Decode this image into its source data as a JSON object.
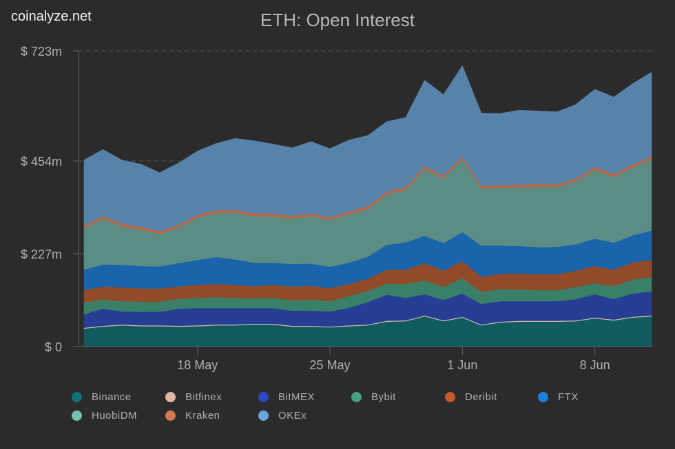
{
  "brand": "coinalyze.net",
  "chart_data": {
    "type": "area",
    "stacked": true,
    "title": "ETH: Open Interest",
    "xlabel": "",
    "ylabel": "",
    "x": [
      "2021-05-12",
      "2021-05-13",
      "2021-05-14",
      "2021-05-15",
      "2021-05-16",
      "2021-05-17",
      "2021-05-18",
      "2021-05-19",
      "2021-05-20",
      "2021-05-21",
      "2021-05-22",
      "2021-05-23",
      "2021-05-24",
      "2021-05-25",
      "2021-05-26",
      "2021-05-27",
      "2021-05-28",
      "2021-05-29",
      "2021-05-30",
      "2021-05-31",
      "2021-06-01",
      "2021-06-02",
      "2021-06-03",
      "2021-06-04",
      "2021-06-05",
      "2021-06-06",
      "2021-06-07",
      "2021-06-08",
      "2021-06-09",
      "2021-06-10",
      "2021-06-11"
    ],
    "x_ticks": [
      {
        "date": "2021-05-18",
        "label": "18 May"
      },
      {
        "date": "2021-05-25",
        "label": "25 May"
      },
      {
        "date": "2021-06-01",
        "label": "1 Jun"
      },
      {
        "date": "2021-06-08",
        "label": "8 Jun"
      }
    ],
    "ylim": [
      0,
      723
    ],
    "y_ticks": [
      {
        "value": 0,
        "label": "$ 0"
      },
      {
        "value": 227,
        "label": "$ 227m"
      },
      {
        "value": 454,
        "label": "$ 454m"
      },
      {
        "value": 723,
        "label": "$ 723m"
      }
    ],
    "unit": "USD millions",
    "grid": "horizontal dashed",
    "legend_position": "bottom",
    "series": [
      {
        "name": "Binance",
        "color": "#0e5c5e",
        "legend_color": "#0f7479",
        "values": [
          44,
          49,
          52,
          50,
          50,
          49,
          50,
          52,
          52,
          54,
          54,
          49,
          49,
          47,
          50,
          52,
          61,
          62,
          74,
          62,
          71,
          52,
          59,
          61,
          61,
          61,
          62,
          69,
          64,
          71,
          74
        ]
      },
      {
        "name": "Bitfinex",
        "color": "#e0bcae",
        "legend_color": "#e2b6a4",
        "values": [
          2,
          2,
          2,
          2,
          2,
          2,
          2,
          2,
          2,
          2,
          2,
          2,
          2,
          2,
          2,
          2,
          2,
          2,
          2,
          2,
          2,
          2,
          2,
          2,
          2,
          2,
          2,
          2,
          2,
          2,
          2
        ]
      },
      {
        "name": "BitMEX",
        "color": "#263f94",
        "legend_color": "#2a48c4",
        "values": [
          33,
          42,
          32,
          33,
          33,
          42,
          42,
          40,
          40,
          38,
          38,
          37,
          37,
          37,
          43,
          55,
          64,
          55,
          52,
          50,
          57,
          50,
          50,
          48,
          48,
          48,
          52,
          57,
          50,
          57,
          59
        ]
      },
      {
        "name": "Bybit",
        "color": "#3a8068",
        "legend_color": "#44a182",
        "values": [
          29,
          22,
          25,
          25,
          25,
          24,
          25,
          27,
          25,
          24,
          25,
          25,
          27,
          25,
          29,
          27,
          27,
          34,
          34,
          32,
          37,
          30,
          30,
          29,
          27,
          27,
          30,
          27,
          32,
          34,
          35
        ]
      },
      {
        "name": "Deribit",
        "color": "#934a28",
        "legend_color": "#c55a2c",
        "values": [
          30,
          32,
          34,
          32,
          32,
          30,
          32,
          32,
          32,
          30,
          32,
          34,
          34,
          32,
          29,
          30,
          34,
          35,
          42,
          40,
          42,
          37,
          37,
          39,
          39,
          39,
          40,
          42,
          40,
          42,
          42
        ]
      },
      {
        "name": "FTX",
        "color": "#1a64ab",
        "legend_color": "#1f7fe0",
        "values": [
          50,
          54,
          55,
          55,
          54,
          57,
          61,
          66,
          62,
          57,
          54,
          55,
          54,
          52,
          52,
          54,
          61,
          67,
          67,
          67,
          71,
          76,
          69,
          67,
          66,
          67,
          64,
          67,
          66,
          66,
          72
        ]
      },
      {
        "name": "HuobiDM",
        "color": "#5b8d84",
        "legend_color": "#74c0b2",
        "values": [
          101,
          111,
          94,
          89,
          79,
          87,
          103,
          108,
          114,
          114,
          113,
          111,
          116,
          114,
          118,
          116,
          123,
          128,
          163,
          158,
          178,
          140,
          141,
          143,
          148,
          146,
          153,
          168,
          161,
          166,
          173
        ]
      },
      {
        "name": "Kraken",
        "color": "#b5694c",
        "legend_color": "#d4784f",
        "values": [
          7,
          7,
          7,
          7,
          7,
          7,
          7,
          7,
          7,
          7,
          7,
          7,
          7,
          7,
          7,
          7,
          7,
          7,
          7,
          7,
          7,
          7,
          7,
          7,
          7,
          7,
          7,
          7,
          7,
          7,
          7
        ]
      },
      {
        "name": "OKEx",
        "color": "#5782aa",
        "legend_color": "#6aa6dc",
        "values": [
          160,
          163,
          155,
          153,
          143,
          151,
          156,
          163,
          175,
          177,
          170,
          166,
          175,
          168,
          175,
          173,
          171,
          170,
          210,
          198,
          222,
          177,
          175,
          182,
          178,
          177,
          182,
          190,
          188,
          198,
          207
        ]
      }
    ]
  }
}
